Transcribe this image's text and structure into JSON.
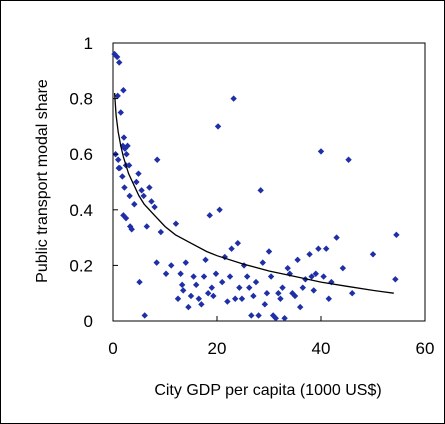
{
  "chart_data": {
    "type": "scatter",
    "title": "",
    "xlabel": "City GDP per capita (1000 US$)",
    "ylabel": "Public transport modal share",
    "xlim": [
      0,
      60
    ],
    "ylim": [
      0,
      1
    ],
    "xticks": [
      "0",
      "20",
      "40",
      "60"
    ],
    "yticks": [
      "0",
      "0.2",
      "0.4",
      "0.6",
      "0.8",
      "1"
    ],
    "grid": false,
    "legend": "none",
    "colors": {
      "points": "#1f2fa8",
      "trend": "#000000",
      "frame": "#000000"
    },
    "series": [
      {
        "type": "scatter",
        "points": [
          [
            0.3,
            0.96
          ],
          [
            0.8,
            0.95
          ],
          [
            1.2,
            0.93
          ],
          [
            0.9,
            0.81
          ],
          [
            1.5,
            0.75
          ],
          [
            1.9,
            0.63
          ],
          [
            2.3,
            0.62
          ],
          [
            2.1,
            0.66
          ],
          [
            2.8,
            0.63
          ],
          [
            2.0,
            0.83
          ],
          [
            0.5,
            0.6
          ],
          [
            1.0,
            0.58
          ],
          [
            1.3,
            0.55
          ],
          [
            1.8,
            0.52
          ],
          [
            2.2,
            0.48
          ],
          [
            2.5,
            0.56
          ],
          [
            1.1,
            0.55
          ],
          [
            3.1,
            0.56
          ],
          [
            2.6,
            0.6
          ],
          [
            3.2,
            0.45
          ],
          [
            2.0,
            0.38
          ],
          [
            2.5,
            0.37
          ],
          [
            3.3,
            0.34
          ],
          [
            3.6,
            0.33
          ],
          [
            4.1,
            0.42
          ],
          [
            4.5,
            0.5
          ],
          [
            4.9,
            0.53
          ],
          [
            5.5,
            0.47
          ],
          [
            5.9,
            0.45
          ],
          [
            6.5,
            0.34
          ],
          [
            7.0,
            0.48
          ],
          [
            7.4,
            0.43
          ],
          [
            8.0,
            0.41
          ],
          [
            8.5,
            0.58
          ],
          [
            9.2,
            0.32
          ],
          [
            6.1,
            0.02
          ],
          [
            5.1,
            0.14
          ],
          [
            8.4,
            0.21
          ],
          [
            10.2,
            0.17
          ],
          [
            11.2,
            0.2
          ],
          [
            12.1,
            0.35
          ],
          [
            12.5,
            0.08
          ],
          [
            13.0,
            0.17
          ],
          [
            13.3,
            0.13
          ],
          [
            13.5,
            0.11
          ],
          [
            14.0,
            0.21
          ],
          [
            14.5,
            0.05
          ],
          [
            15.0,
            0.09
          ],
          [
            15.5,
            0.16
          ],
          [
            16.0,
            0.13
          ],
          [
            16.5,
            0.08
          ],
          [
            17.0,
            0.06
          ],
          [
            17.5,
            0.16
          ],
          [
            17.8,
            0.22
          ],
          [
            18.3,
            0.1
          ],
          [
            18.6,
            0.38
          ],
          [
            19.0,
            0.12
          ],
          [
            19.3,
            0.09
          ],
          [
            19.8,
            0.17
          ],
          [
            20.2,
            0.7
          ],
          [
            20.5,
            0.4
          ],
          [
            21.0,
            0.14
          ],
          [
            21.5,
            0.23
          ],
          [
            22.0,
            0.07
          ],
          [
            22.5,
            0.16
          ],
          [
            22.8,
            0.26
          ],
          [
            23.2,
            0.8
          ],
          [
            23.5,
            0.08
          ],
          [
            24.0,
            0.28
          ],
          [
            24.3,
            0.12
          ],
          [
            24.8,
            0.08
          ],
          [
            25.2,
            0.2
          ],
          [
            25.8,
            0.16
          ],
          [
            26.2,
            0.12
          ],
          [
            26.6,
            0.02
          ],
          [
            27.0,
            0.09
          ],
          [
            27.5,
            0.14
          ],
          [
            28.0,
            0.02
          ],
          [
            28.4,
            0.47
          ],
          [
            28.8,
            0.21
          ],
          [
            29.2,
            0.06
          ],
          [
            29.6,
            0.1
          ],
          [
            30.0,
            0.25
          ],
          [
            30.4,
            0.16
          ],
          [
            30.8,
            0.02
          ],
          [
            31.3,
            0.01
          ],
          [
            31.8,
            0.1
          ],
          [
            32.2,
            0.08
          ],
          [
            32.6,
            0.12
          ],
          [
            33.0,
            0.01
          ],
          [
            33.6,
            0.19
          ],
          [
            34.0,
            0.17
          ],
          [
            34.5,
            0.1
          ],
          [
            35.0,
            0.09
          ],
          [
            35.5,
            0.22
          ],
          [
            36.0,
            0.05
          ],
          [
            36.5,
            0.12
          ],
          [
            37.0,
            0.15
          ],
          [
            37.8,
            0.24
          ],
          [
            38.2,
            0.16
          ],
          [
            38.6,
            0.11
          ],
          [
            39.0,
            0.17
          ],
          [
            39.5,
            0.26
          ],
          [
            40.0,
            0.61
          ],
          [
            40.5,
            0.16
          ],
          [
            41.0,
            0.26
          ],
          [
            41.5,
            0.08
          ],
          [
            42.0,
            0.14
          ],
          [
            43.0,
            0.3
          ],
          [
            44.2,
            0.19
          ],
          [
            45.3,
            0.58
          ],
          [
            46.0,
            0.1
          ],
          [
            50.0,
            0.24
          ],
          [
            54.3,
            0.15
          ],
          [
            54.5,
            0.31
          ]
        ]
      },
      {
        "type": "line",
        "name": "",
        "x": [
          0.3,
          0.6,
          1,
          1.5,
          2,
          3,
          4,
          5,
          6,
          8,
          10,
          12,
          15,
          18,
          20,
          25,
          30,
          35,
          40,
          45,
          50,
          54
        ],
        "y": [
          0.82,
          0.74,
          0.68,
          0.63,
          0.59,
          0.53,
          0.49,
          0.45,
          0.42,
          0.38,
          0.34,
          0.31,
          0.28,
          0.25,
          0.235,
          0.205,
          0.18,
          0.16,
          0.14,
          0.125,
          0.11,
          0.1
        ]
      }
    ]
  }
}
